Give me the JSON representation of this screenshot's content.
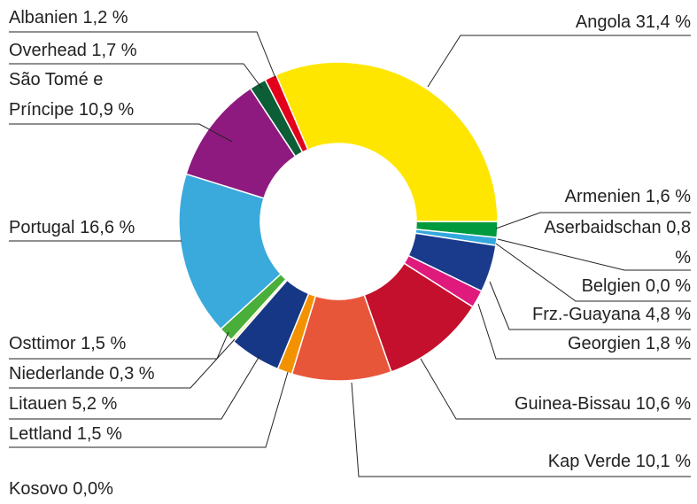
{
  "chart_data": {
    "type": "donut",
    "categories": [
      "Angola",
      "Armenien",
      "Aserbaidschan",
      "Belgien",
      "Frz.-Guayana",
      "Georgien",
      "Guinea-Bissau",
      "Kap Verde",
      "Kosovo",
      "Lettland",
      "Litauen",
      "Niederlande",
      "Osttimor",
      "Portugal",
      "São Tomé e Príncipe",
      "Overhead",
      "Albanien"
    ],
    "values": [
      31.4,
      1.6,
      0.8,
      0.0,
      4.8,
      1.8,
      10.6,
      10.1,
      0.0,
      1.5,
      5.2,
      0.3,
      1.5,
      16.6,
      10.9,
      1.7,
      1.2
    ],
    "value_labels": [
      "31,4 %",
      "1,6 %",
      "0,8 %",
      "0,0 %",
      "4,8 %",
      "1,8 %",
      "10,6 %",
      "10,1 %",
      "0,0%",
      "1,5 %",
      "5,2 %",
      "0,3 %",
      "1,5 %",
      "16,6 %",
      "10,9 %",
      "1,7 %",
      "1,2 %"
    ],
    "colors": [
      "#ffe600",
      "#009a3e",
      "#34a8dc",
      "#888888",
      "#1a3a8c",
      "#e0197d",
      "#c4102c",
      "#e8563a",
      "#aaaaaa",
      "#f39200",
      "#163785",
      "#f8f2b0",
      "#4aae3a",
      "#3aaadc",
      "#8e1a7f",
      "#0b5e36",
      "#e2001a"
    ]
  }
}
